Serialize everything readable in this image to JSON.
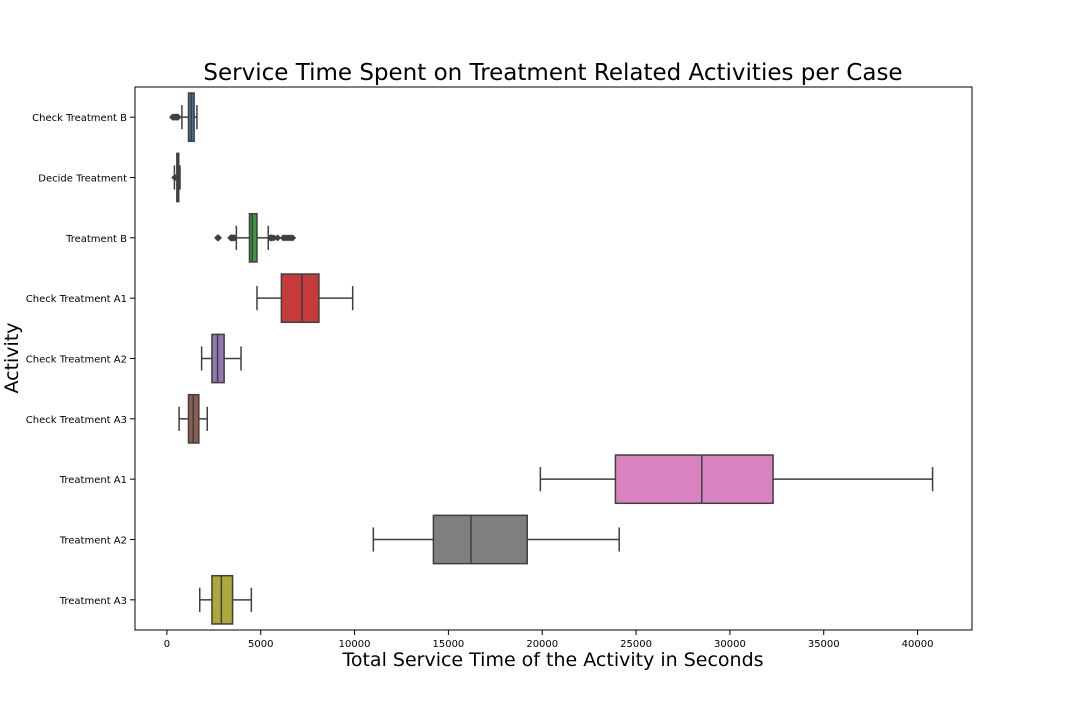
{
  "chart_data": {
    "type": "boxplot",
    "orientation": "horizontal",
    "title": "Service Time Spent on Treatment Related Activities per Case",
    "xlabel": "Total Service Time of the Activity in Seconds",
    "ylabel": "Activity",
    "xlim": [
      -1700,
      42900
    ],
    "xticks": [
      0,
      5000,
      10000,
      15000,
      20000,
      25000,
      30000,
      35000,
      40000
    ],
    "grid": false,
    "legend": "none",
    "series": [
      {
        "name": "Check Treatment B",
        "color": "#3a75a8",
        "whisker_low": 800,
        "q1": 1150,
        "median": 1300,
        "q3": 1450,
        "whisker_high": 1600,
        "outliers": [
          300,
          350,
          400,
          450,
          500,
          550,
          600
        ]
      },
      {
        "name": "Decide Treatment",
        "color": "#d8802b",
        "whisker_low": 400,
        "q1": 530,
        "median": 580,
        "q3": 630,
        "whisker_high": 700,
        "outliers": [
          420,
          440
        ]
      },
      {
        "name": "Treatment B",
        "color": "#3e9a3e",
        "whisker_low": 3700,
        "q1": 4400,
        "median": 4550,
        "q3": 4800,
        "whisker_high": 5400,
        "outliers": [
          2700,
          2750,
          3400,
          3450,
          3500,
          3550,
          3600,
          5500,
          5550,
          5600,
          5700,
          5900,
          6200,
          6300,
          6400,
          6500,
          6600,
          6700
        ]
      },
      {
        "name": "Check Treatment A1",
        "color": "#c73a3b",
        "whisker_low": 4800,
        "q1": 6100,
        "median": 7200,
        "q3": 8100,
        "whisker_high": 9900,
        "outliers": []
      },
      {
        "name": "Check Treatment A2",
        "color": "#9079b3",
        "whisker_low": 1850,
        "q1": 2400,
        "median": 2700,
        "q3": 3050,
        "whisker_high": 3950,
        "outliers": []
      },
      {
        "name": "Check Treatment A3",
        "color": "#8c5c52",
        "whisker_low": 650,
        "q1": 1150,
        "median": 1400,
        "q3": 1700,
        "whisker_high": 2150,
        "outliers": []
      },
      {
        "name": "Treatment A1",
        "color": "#d883bf",
        "whisker_low": 19900,
        "q1": 23900,
        "median": 28500,
        "q3": 32300,
        "whisker_high": 40800,
        "outliers": []
      },
      {
        "name": "Treatment A2",
        "color": "#7f7f7f",
        "whisker_low": 11000,
        "q1": 14200,
        "median": 16200,
        "q3": 19200,
        "whisker_high": 24100,
        "outliers": []
      },
      {
        "name": "Treatment A3",
        "color": "#aaa93a",
        "whisker_low": 1750,
        "q1": 2400,
        "median": 2900,
        "q3": 3500,
        "whisker_high": 4500,
        "outliers": []
      }
    ]
  }
}
